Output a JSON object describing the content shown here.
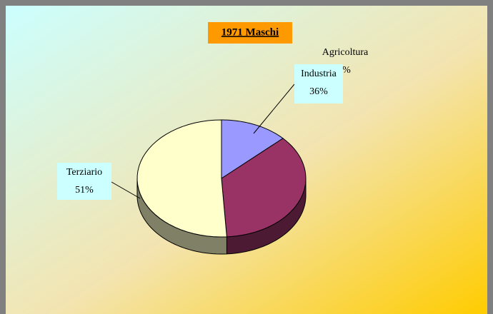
{
  "chart_data": {
    "type": "pie",
    "title": "1971 Maschi",
    "categories": [
      "Agricoltura",
      "Industria",
      "Terziario"
    ],
    "values": [
      13,
      36,
      51
    ],
    "value_labels": [
      "13%",
      "36%",
      "51%"
    ],
    "colors": [
      "#9999ff",
      "#993366",
      "#ffffcc"
    ]
  }
}
